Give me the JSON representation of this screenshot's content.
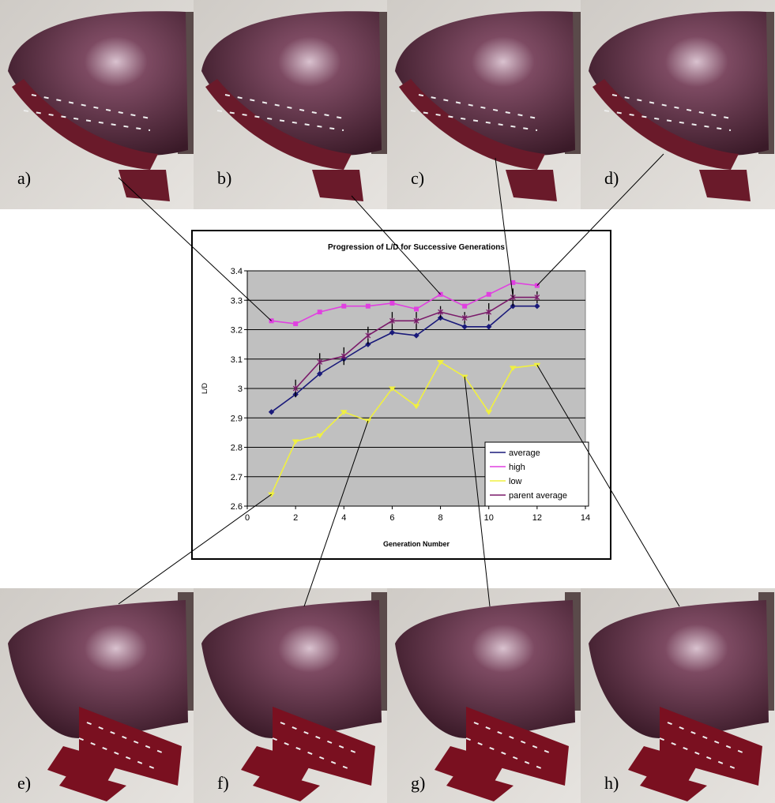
{
  "panel_labels": [
    "a)",
    "b)",
    "c)",
    "d)",
    "e)",
    "f)",
    "g)",
    "h)"
  ],
  "chart_data": {
    "type": "line",
    "title": "Progression of L/D for Successive Generations",
    "x_label": "Generation Number",
    "y_label": "L/D",
    "x": [
      1,
      2,
      3,
      4,
      5,
      6,
      7,
      8,
      9,
      10,
      11,
      12
    ],
    "series": [
      {
        "name": "average",
        "color": "#1a1a7a",
        "marker": "diamond",
        "values": [
          2.92,
          2.98,
          3.05,
          3.1,
          3.15,
          3.19,
          3.18,
          3.24,
          3.21,
          3.21,
          3.28,
          3.28
        ]
      },
      {
        "name": "high",
        "color": "#e040e0",
        "marker": "square",
        "values": [
          3.23,
          3.22,
          3.26,
          3.28,
          3.28,
          3.29,
          3.27,
          3.32,
          3.28,
          3.32,
          3.36,
          3.35
        ]
      },
      {
        "name": "low",
        "color": "#f0f040",
        "marker": "triangle",
        "values": [
          2.64,
          2.82,
          2.84,
          2.92,
          2.89,
          3.0,
          2.94,
          3.09,
          3.04,
          2.92,
          3.07,
          3.08
        ]
      },
      {
        "name": "parent average",
        "color": "#7a1a6a",
        "marker": "star",
        "values": [
          null,
          3.0,
          3.09,
          3.11,
          3.18,
          3.23,
          3.23,
          3.26,
          3.24,
          3.26,
          3.31,
          3.31
        ],
        "errors": [
          null,
          0.03,
          0.03,
          0.03,
          0.03,
          0.03,
          0.03,
          0.02,
          0.02,
          0.03,
          0.03,
          0.02
        ]
      }
    ],
    "xlim": [
      0,
      14
    ],
    "xticks": [
      0,
      2,
      4,
      6,
      8,
      10,
      12,
      14
    ],
    "ylim": [
      2.6,
      3.4
    ],
    "yticks": [
      2.6,
      2.7,
      2.8,
      2.9,
      3,
      3.1,
      3.2,
      3.3,
      3.4
    ],
    "grid": true,
    "legend": "lower-right",
    "plot_background": "#c0c0c0"
  }
}
